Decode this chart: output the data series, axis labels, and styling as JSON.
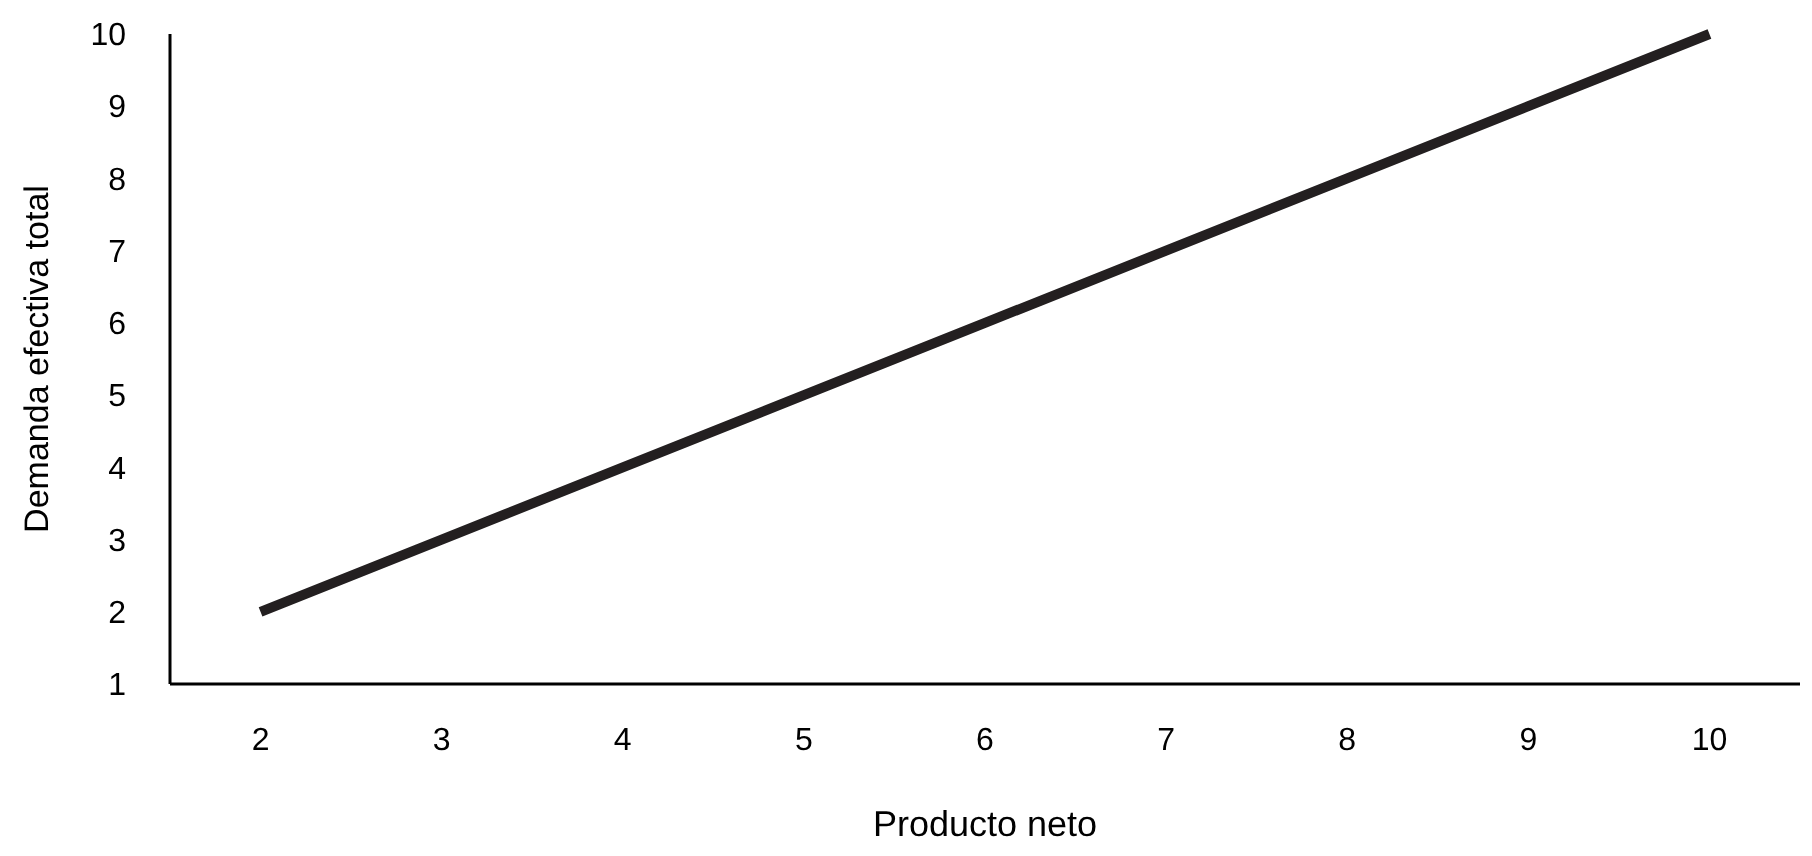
{
  "chart_data": {
    "type": "line",
    "xlabel": "Producto neto",
    "ylabel": "Demanda efectiva total",
    "categories": [
      "2",
      "3",
      "4",
      "5",
      "6",
      "7",
      "8",
      "9",
      "10"
    ],
    "series": [
      {
        "color": "#231f20",
        "values": [
          2,
          3,
          4,
          5,
          6,
          7,
          8,
          9,
          10
        ]
      }
    ],
    "ylim": [
      1,
      10
    ],
    "yticks": [
      1,
      2,
      3,
      4,
      5,
      6,
      7,
      8,
      9,
      10
    ],
    "marker": "none",
    "line_style": "solid"
  }
}
